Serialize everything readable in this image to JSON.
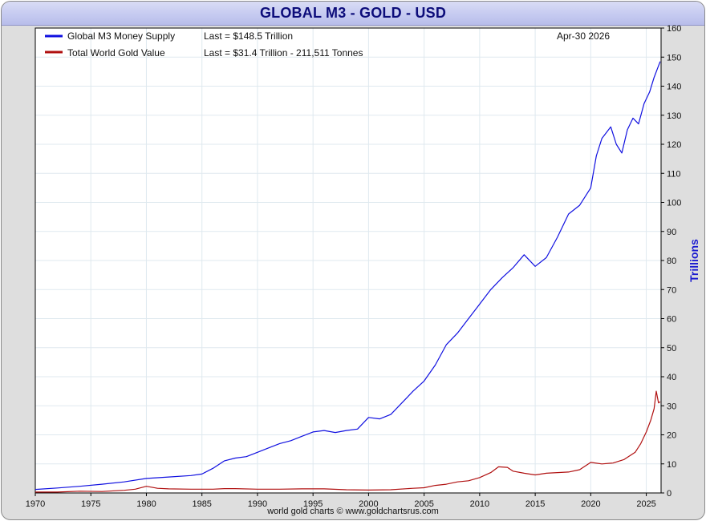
{
  "title": "GLOBAL M3 - GOLD - USD",
  "footer": "world gold charts © www.goldchartsrus.com",
  "date_label": "Apr-30  2026",
  "legend": [
    {
      "name": "Global M3 Money Supply",
      "last": "Last = $148.5 Trillion",
      "color": "#1010e0"
    },
    {
      "name": "Total World Gold Value",
      "last": "Last = $31.4 Trillion - 211,511 Tonnes",
      "color": "#b01010"
    }
  ],
  "chart_data": {
    "type": "line",
    "title": "GLOBAL M3 - GOLD - USD",
    "xlabel": "",
    "ylabel": "Trillions",
    "xlim": [
      1970,
      2026.33
    ],
    "ylim": [
      0,
      160
    ],
    "x_ticks": [
      1970,
      1975,
      1980,
      1985,
      1990,
      1995,
      2000,
      2005,
      2010,
      2015,
      2020,
      2025
    ],
    "y_ticks": [
      0,
      10,
      20,
      30,
      40,
      50,
      60,
      70,
      80,
      90,
      100,
      110,
      120,
      130,
      140,
      150,
      160
    ],
    "grid": true,
    "legend_position": "top-left",
    "series": [
      {
        "name": "Global M3 Money Supply",
        "color": "#1010e0",
        "points": [
          [
            1970,
            1.2
          ],
          [
            1972,
            1.7
          ],
          [
            1974,
            2.3
          ],
          [
            1976,
            3.0
          ],
          [
            1978,
            3.8
          ],
          [
            1980,
            5.0
          ],
          [
            1982,
            5.5
          ],
          [
            1984,
            6.0
          ],
          [
            1985,
            6.5
          ],
          [
            1986,
            8.5
          ],
          [
            1987,
            11.0
          ],
          [
            1988,
            12.0
          ],
          [
            1989,
            12.5
          ],
          [
            1990,
            14.0
          ],
          [
            1991,
            15.5
          ],
          [
            1992,
            17.0
          ],
          [
            1993,
            18.0
          ],
          [
            1994,
            19.5
          ],
          [
            1995,
            21.0
          ],
          [
            1996,
            21.5
          ],
          [
            1997,
            20.8
          ],
          [
            1998,
            21.5
          ],
          [
            1999,
            22.0
          ],
          [
            2000,
            26.0
          ],
          [
            2001,
            25.5
          ],
          [
            2002,
            27.0
          ],
          [
            2003,
            31.0
          ],
          [
            2004,
            35.0
          ],
          [
            2005,
            38.5
          ],
          [
            2006,
            44.0
          ],
          [
            2007,
            51.0
          ],
          [
            2008,
            55.0
          ],
          [
            2009,
            60.0
          ],
          [
            2010,
            65.0
          ],
          [
            2011,
            70.0
          ],
          [
            2012,
            74.0
          ],
          [
            2013,
            77.5
          ],
          [
            2014,
            82.0
          ],
          [
            2015,
            78.0
          ],
          [
            2016,
            81.0
          ],
          [
            2017,
            88.0
          ],
          [
            2018,
            96.0
          ],
          [
            2019,
            99.0
          ],
          [
            2020,
            105.0
          ],
          [
            2020.5,
            116.0
          ],
          [
            2021,
            122.0
          ],
          [
            2021.8,
            126.0
          ],
          [
            2022.3,
            120.0
          ],
          [
            2022.8,
            117.0
          ],
          [
            2023.3,
            125.0
          ],
          [
            2023.8,
            129.0
          ],
          [
            2024.3,
            127.0
          ],
          [
            2024.8,
            134.0
          ],
          [
            2025.3,
            138.0
          ],
          [
            2025.7,
            143.0
          ],
          [
            2026.0,
            146.0
          ],
          [
            2026.25,
            148.5
          ]
        ]
      },
      {
        "name": "Total World Gold Value",
        "color": "#b01010",
        "points": [
          [
            1970,
            0.3
          ],
          [
            1972,
            0.3
          ],
          [
            1974,
            0.6
          ],
          [
            1976,
            0.5
          ],
          [
            1978,
            0.9
          ],
          [
            1979,
            1.3
          ],
          [
            1980,
            2.3
          ],
          [
            1981,
            1.6
          ],
          [
            1982,
            1.4
          ],
          [
            1984,
            1.3
          ],
          [
            1986,
            1.3
          ],
          [
            1987,
            1.5
          ],
          [
            1988,
            1.5
          ],
          [
            1990,
            1.3
          ],
          [
            1992,
            1.3
          ],
          [
            1994,
            1.4
          ],
          [
            1996,
            1.4
          ],
          [
            1998,
            1.1
          ],
          [
            2000,
            1.0
          ],
          [
            2002,
            1.1
          ],
          [
            2004,
            1.6
          ],
          [
            2005,
            1.8
          ],
          [
            2006,
            2.6
          ],
          [
            2007,
            3.0
          ],
          [
            2008,
            3.8
          ],
          [
            2009,
            4.2
          ],
          [
            2010,
            5.3
          ],
          [
            2011,
            7.0
          ],
          [
            2011.7,
            9.0
          ],
          [
            2012.5,
            8.8
          ],
          [
            2013,
            7.5
          ],
          [
            2014,
            6.8
          ],
          [
            2015,
            6.2
          ],
          [
            2016,
            6.8
          ],
          [
            2017,
            7.0
          ],
          [
            2018,
            7.2
          ],
          [
            2019,
            8.0
          ],
          [
            2020,
            10.5
          ],
          [
            2021,
            10.0
          ],
          [
            2022,
            10.3
          ],
          [
            2023,
            11.5
          ],
          [
            2024,
            14.0
          ],
          [
            2024.5,
            17.0
          ],
          [
            2025,
            21.0
          ],
          [
            2025.4,
            25.0
          ],
          [
            2025.7,
            29.0
          ],
          [
            2025.9,
            35.0
          ],
          [
            2026.1,
            31.0
          ],
          [
            2026.25,
            31.4
          ]
        ]
      }
    ]
  }
}
